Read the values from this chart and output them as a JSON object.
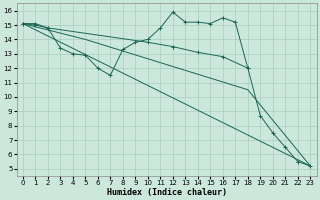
{
  "xlabel": "Humidex (Indice chaleur)",
  "background_color": "#cce8dd",
  "grid_color": "#aaccbb",
  "line_color": "#1a6655",
  "xlim": [
    -0.5,
    23.5
  ],
  "ylim": [
    4.5,
    16.5
  ],
  "xticks": [
    0,
    1,
    2,
    3,
    4,
    5,
    6,
    7,
    8,
    9,
    10,
    11,
    12,
    13,
    14,
    15,
    16,
    17,
    18,
    19,
    20,
    21,
    22,
    23
  ],
  "yticks": [
    5,
    6,
    7,
    8,
    9,
    10,
    11,
    12,
    13,
    14,
    15,
    16
  ],
  "series": [
    {
      "x": [
        0,
        1,
        2,
        3,
        4,
        5,
        6,
        7,
        8,
        9,
        10,
        11,
        12,
        13,
        14,
        15,
        16,
        17,
        18
      ],
      "y": [
        15.1,
        15.1,
        14.8,
        13.4,
        13.0,
        12.9,
        12.0,
        11.5,
        13.3,
        13.8,
        14.0,
        14.8,
        15.9,
        15.2,
        15.2,
        15.1,
        15.5,
        15.2,
        12.0
      ],
      "marker": true
    },
    {
      "x": [
        0,
        1,
        2,
        10,
        12,
        14,
        16,
        18,
        19,
        20,
        21,
        22,
        23
      ],
      "y": [
        15.1,
        15.0,
        14.8,
        13.8,
        13.5,
        13.1,
        12.8,
        12.0,
        8.7,
        7.5,
        6.5,
        5.5,
        5.2
      ],
      "marker": true
    },
    {
      "x": [
        0,
        23
      ],
      "y": [
        15.1,
        5.2
      ],
      "marker": false
    },
    {
      "x": [
        0,
        5,
        18,
        23
      ],
      "y": [
        15.1,
        14.0,
        10.5,
        5.2
      ],
      "marker": false
    }
  ]
}
